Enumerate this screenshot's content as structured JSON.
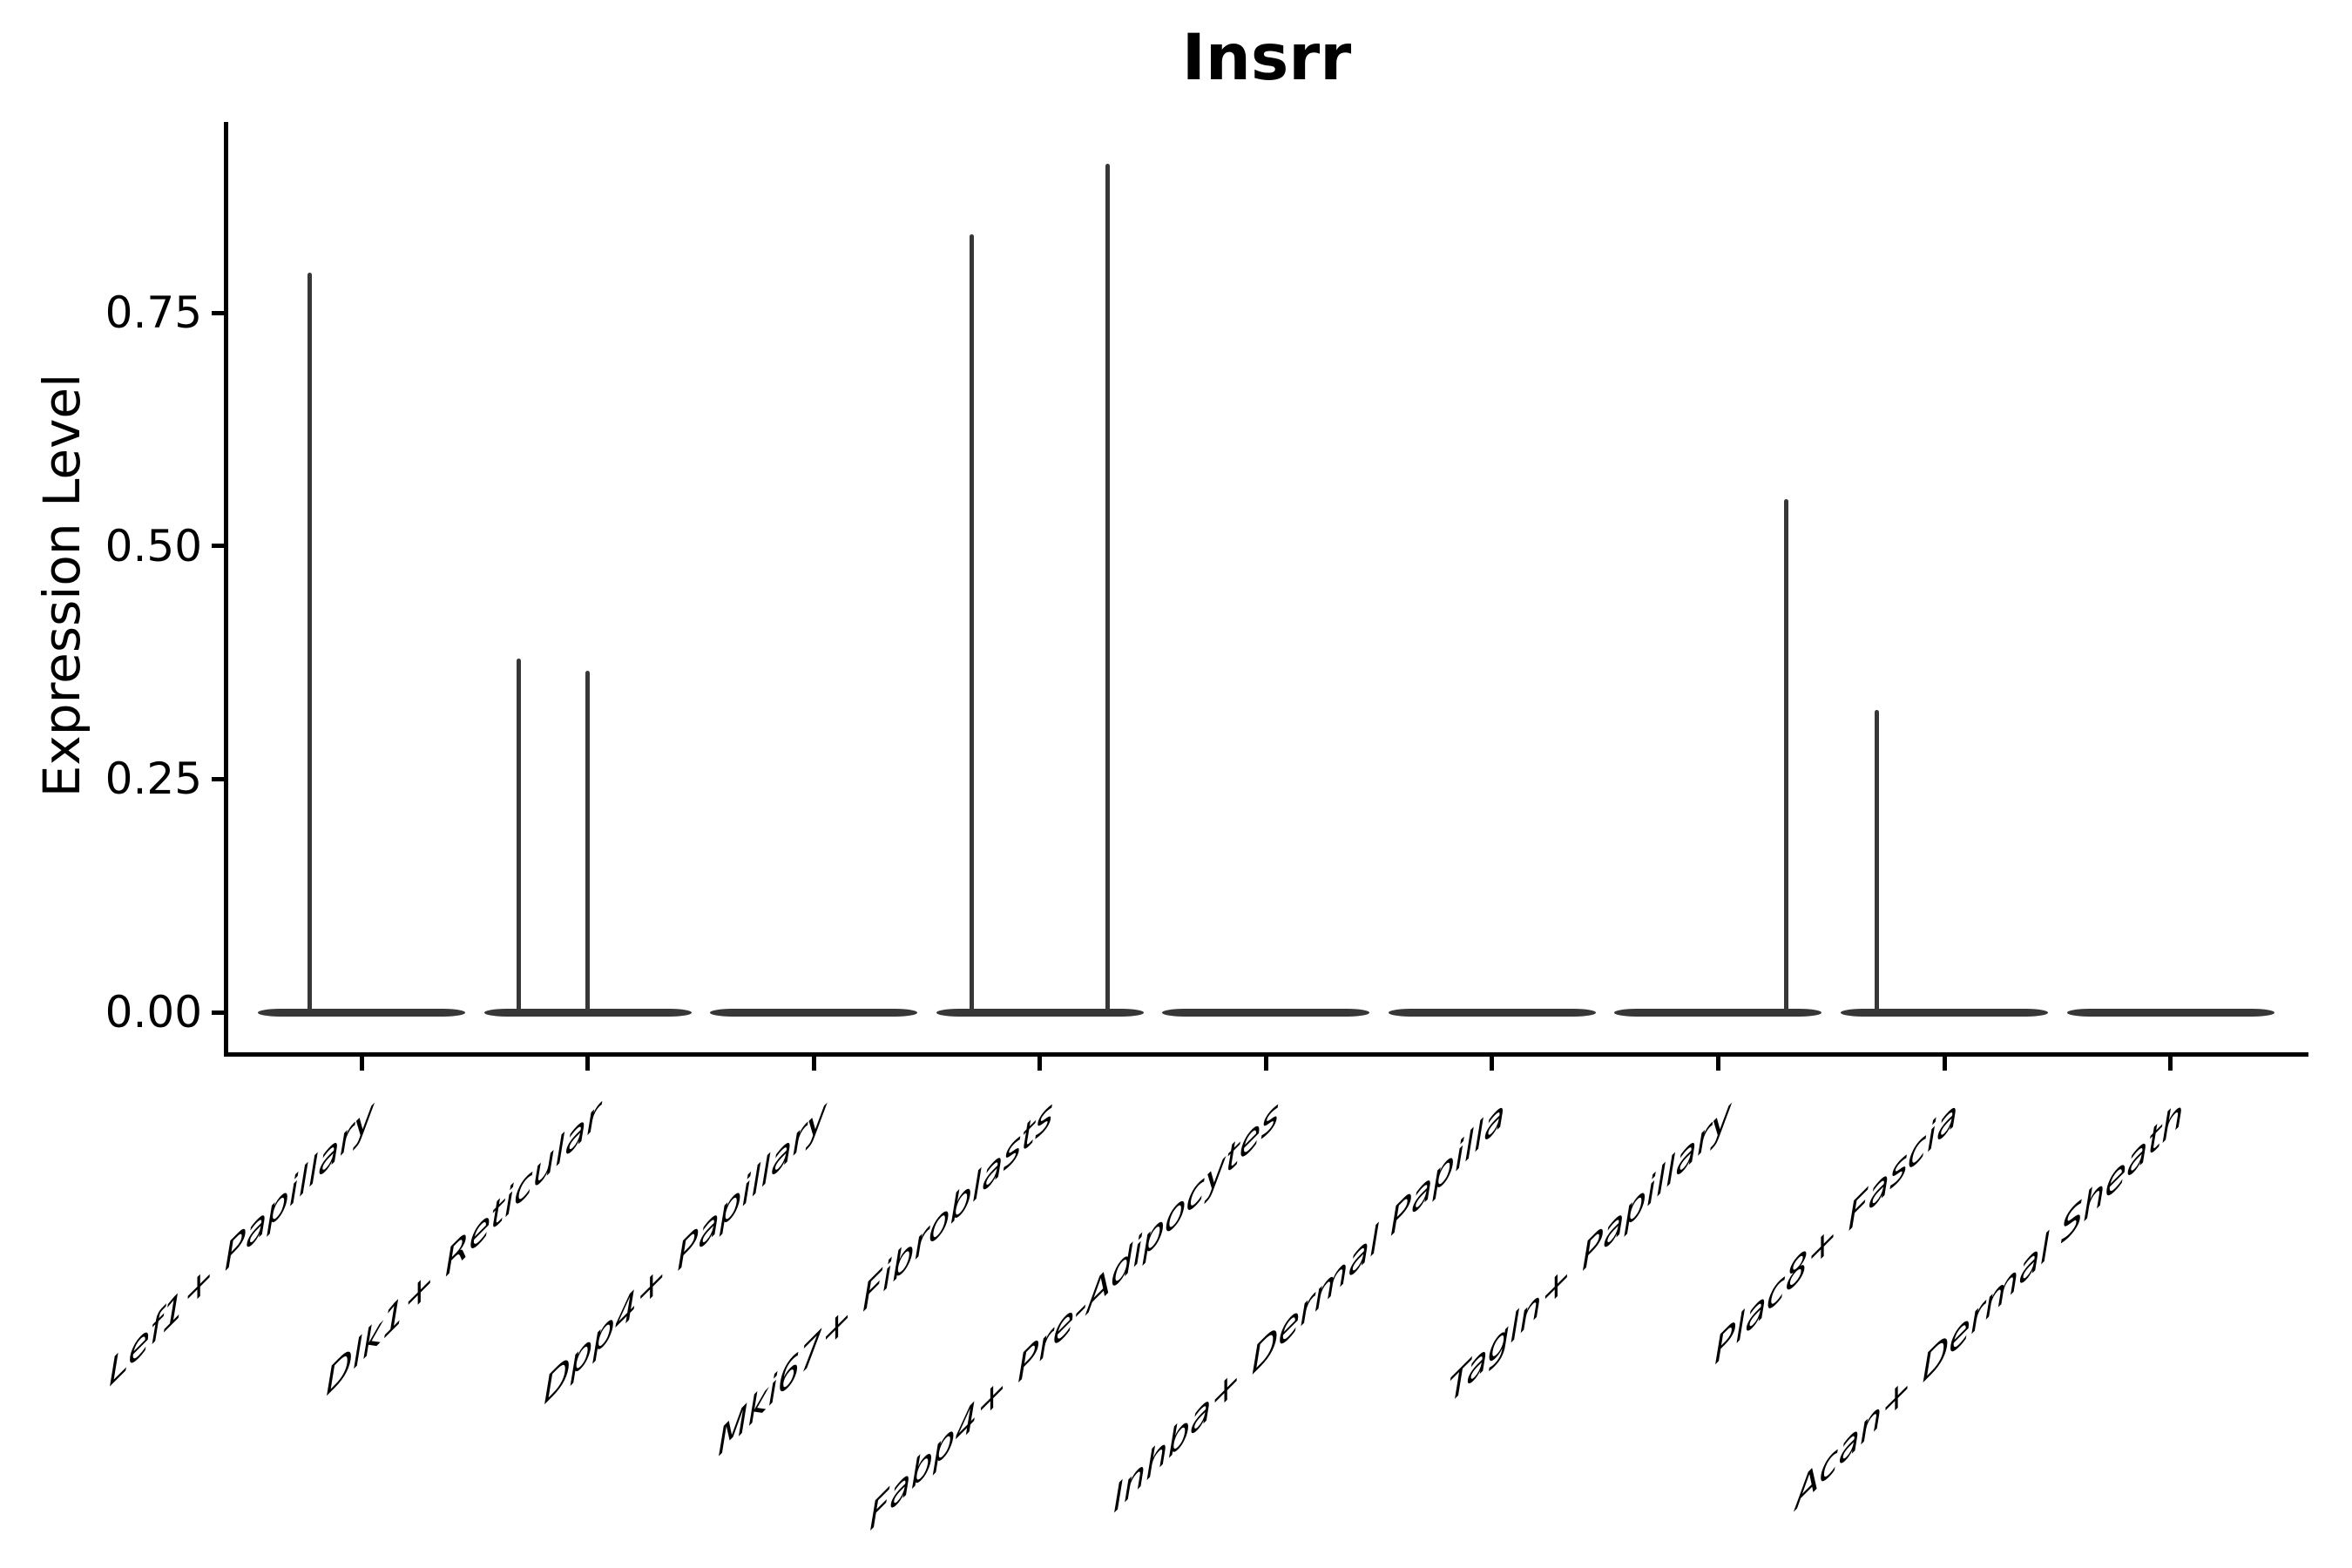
{
  "chart_data": {
    "type": "violin",
    "title": "Insrr",
    "ylabel": "Expression Level",
    "xlabel": "",
    "grid": false,
    "legend": false,
    "axis_color": "#000000",
    "violin_color": "#373737",
    "ylim": [
      -0.045,
      0.955
    ],
    "ytick_labels": [
      "0.00",
      "0.25",
      "0.50",
      "0.75"
    ],
    "ytick_values": [
      0,
      0.25,
      0.5,
      0.75
    ],
    "categories": [
      {
        "label": "Lef1+ Papillary",
        "zero_body": true,
        "spikes": [
          {
            "offset": -0.231,
            "value": 0.793
          }
        ]
      },
      {
        "label": "Dlk1+ Reticular",
        "zero_body": true,
        "spikes": [
          {
            "offset": -0.303,
            "value": 0.379
          },
          {
            "offset": -0.002,
            "value": 0.366
          }
        ]
      },
      {
        "label": "Dpp4+ Papillary",
        "zero_body": true,
        "spikes": []
      },
      {
        "label": "Mki67+ Fibroblasts",
        "zero_body": true,
        "spikes": [
          {
            "offset": -0.301,
            "value": 0.834
          },
          {
            "offset": 0.299,
            "value": 0.91
          }
        ]
      },
      {
        "label": "Fabp4+ Pre-Adipocytes",
        "zero_body": true,
        "spikes": []
      },
      {
        "label": "Inhba+ Dermal Papilla",
        "zero_body": true,
        "spikes": []
      },
      {
        "label": "Tagln+ Papillary",
        "zero_body": true,
        "spikes": [
          {
            "offset": 0.3,
            "value": 0.55
          }
        ]
      },
      {
        "label": "Plac8+ Fascia",
        "zero_body": true,
        "spikes": [
          {
            "offset": -0.297,
            "value": 0.324
          }
        ]
      },
      {
        "label": "Acan+ Dermal Sheath",
        "zero_body": true,
        "spikes": []
      }
    ]
  }
}
